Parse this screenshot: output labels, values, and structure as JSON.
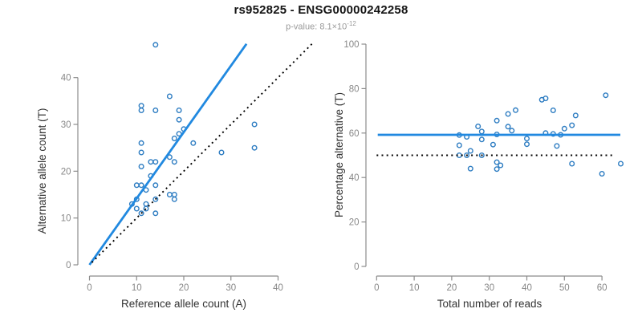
{
  "title": "rs952825 - ENSG00000242258",
  "subtitle": {
    "prefix": "p-value: ",
    "mantissa": "8.1×10",
    "exponent": "-12"
  },
  "colors": {
    "accent_blue_line": "#2189e0",
    "point_blue": "#2e7dc2",
    "dotted_black": "#000000",
    "axis_gray": "#8c8c8c",
    "tick_text_gray": "#878787",
    "label_text_dark": "#333333"
  },
  "chart_data": [
    {
      "type": "scatter",
      "panel": "left",
      "xlabel": "Reference allele count (A)",
      "ylabel": "Alternative allele count (T)",
      "xticks": [
        0,
        10,
        20,
        30,
        40
      ],
      "yticks": [
        0,
        10,
        20,
        30,
        40
      ],
      "xlim": [
        0,
        47
      ],
      "ylim": [
        0,
        48
      ],
      "grid": false,
      "points": [
        [
          14,
          47
        ],
        [
          17,
          36
        ],
        [
          11,
          34
        ],
        [
          11,
          33
        ],
        [
          14,
          33
        ],
        [
          19,
          33
        ],
        [
          19,
          31
        ],
        [
          20,
          29
        ],
        [
          19,
          28
        ],
        [
          18,
          27
        ],
        [
          11,
          26
        ],
        [
          22,
          26
        ],
        [
          11,
          24
        ],
        [
          28,
          24
        ],
        [
          35,
          30
        ],
        [
          35,
          25
        ],
        [
          13,
          22
        ],
        [
          14,
          22
        ],
        [
          17,
          23
        ],
        [
          18,
          22
        ],
        [
          11,
          21
        ],
        [
          13,
          19
        ],
        [
          10,
          17
        ],
        [
          11,
          17
        ],
        [
          12,
          16
        ],
        [
          14,
          17
        ],
        [
          17,
          15
        ],
        [
          18,
          15
        ],
        [
          18,
          14
        ],
        [
          10,
          14
        ],
        [
          14,
          14
        ],
        [
          12,
          13
        ],
        [
          9,
          13
        ],
        [
          10,
          12
        ],
        [
          12,
          12
        ],
        [
          11,
          11
        ],
        [
          14,
          11
        ]
      ],
      "lines": [
        {
          "name": "regression",
          "style": "solid",
          "color": "#2189e0",
          "width": 2.8,
          "x1": 0,
          "y1": 0,
          "x2": 33.3,
          "y2": 47.2
        },
        {
          "name": "identity",
          "style": "dotted",
          "color": "#000000",
          "width": 1.9,
          "x1": 0.5,
          "y1": 0.5,
          "x2": 47.4,
          "y2": 47.4
        }
      ]
    },
    {
      "type": "scatter",
      "panel": "right",
      "xlabel": "Total number of reads",
      "ylabel": "Percentage alternative (T)",
      "xticks": [
        0,
        10,
        20,
        30,
        40,
        50,
        60
      ],
      "yticks": [
        0,
        20,
        40,
        60,
        80,
        100
      ],
      "xlim": [
        0,
        65
      ],
      "ylim": [
        0,
        100
      ],
      "grid": false,
      "points": [
        [
          61,
          77.0
        ],
        [
          53,
          67.9
        ],
        [
          45,
          75.6
        ],
        [
          44,
          75.0
        ],
        [
          47,
          70.2
        ],
        [
          52,
          63.5
        ],
        [
          50,
          62.0
        ],
        [
          49,
          59.2
        ],
        [
          47,
          59.6
        ],
        [
          45,
          60.0
        ],
        [
          37,
          70.3
        ],
        [
          48,
          54.2
        ],
        [
          35,
          68.6
        ],
        [
          52,
          46.2
        ],
        [
          65,
          46.2
        ],
        [
          60,
          41.7
        ],
        [
          35,
          62.9
        ],
        [
          36,
          61.1
        ],
        [
          40,
          57.5
        ],
        [
          40,
          55.0
        ],
        [
          32,
          65.6
        ],
        [
          32,
          59.4
        ],
        [
          27,
          63.0
        ],
        [
          28,
          60.7
        ],
        [
          28,
          57.1
        ],
        [
          31,
          54.8
        ],
        [
          32,
          46.9
        ],
        [
          33,
          45.5
        ],
        [
          32,
          43.8
        ],
        [
          24,
          58.3
        ],
        [
          28,
          50.0
        ],
        [
          25,
          52.0
        ],
        [
          22,
          59.1
        ],
        [
          22,
          54.5
        ],
        [
          24,
          50.0
        ],
        [
          22,
          50.0
        ],
        [
          25,
          44.0
        ]
      ],
      "lines": [
        {
          "name": "mean-percentage",
          "style": "solid",
          "color": "#2189e0",
          "width": 2.8,
          "x1": 0.3,
          "y1": 59.2,
          "x2": 64.9,
          "y2": 59.2
        },
        {
          "name": "expected-50pct",
          "style": "dotted",
          "color": "#000000",
          "width": 1.9,
          "x1": 0,
          "y1": 50,
          "x2": 63.5,
          "y2": 50
        }
      ]
    }
  ]
}
